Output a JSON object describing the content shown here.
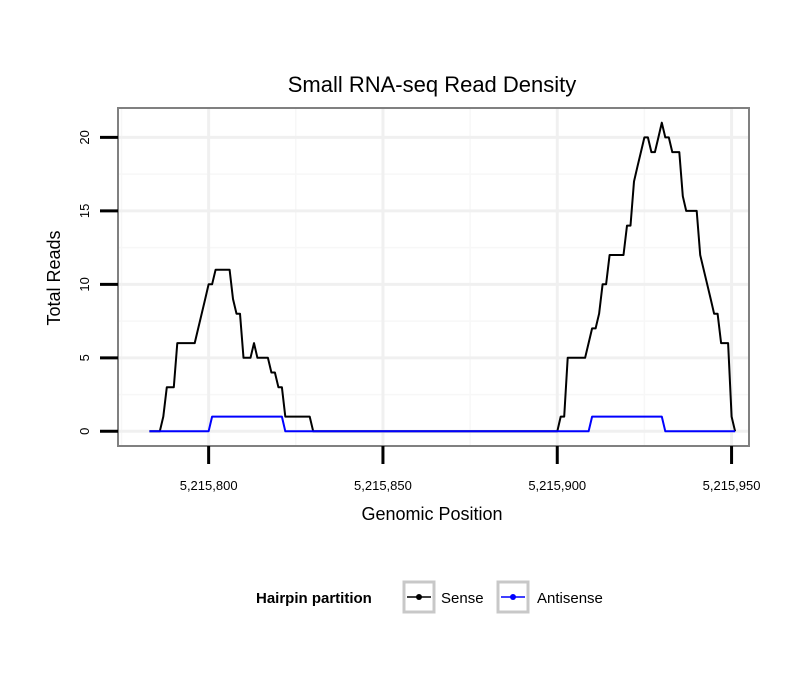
{
  "chart_data": {
    "type": "line",
    "title": "Small RNA-seq Read Density",
    "xlabel": "Genomic Position",
    "ylabel": "Total Reads",
    "xlim": [
      5215774,
      5215955
    ],
    "ylim": [
      -1,
      22
    ],
    "x_ticks": [
      5215800,
      5215850,
      5215900,
      5215950
    ],
    "x_tick_labels": [
      "5,215,800",
      "5,215,850",
      "5,215,900",
      "5,215,950"
    ],
    "y_ticks": [
      0,
      5,
      10,
      15,
      20
    ],
    "y_tick_labels": [
      "0",
      "5",
      "10",
      "15",
      "20"
    ],
    "grid": true,
    "legend": {
      "title": "Hairpin partition",
      "position": "bottom"
    },
    "series": [
      {
        "name": "Sense",
        "color": "#000000",
        "x": [
          5215783,
          5215786,
          5215787,
          5215788,
          5215789,
          5215790,
          5215791,
          5215792,
          5215793,
          5215794,
          5215795,
          5215796,
          5215797,
          5215798,
          5215799,
          5215800,
          5215801,
          5215802,
          5215803,
          5215804,
          5215805,
          5215806,
          5215807,
          5215808,
          5215809,
          5215810,
          5215811,
          5215812,
          5215813,
          5215814,
          5215815,
          5215816,
          5215817,
          5215818,
          5215819,
          5215820,
          5215821,
          5215822,
          5215823,
          5215824,
          5215825,
          5215826,
          5215827,
          5215828,
          5215829,
          5215830,
          5215840,
          5215850,
          5215860,
          5215870,
          5215880,
          5215890,
          5215900,
          5215901,
          5215902,
          5215903,
          5215904,
          5215905,
          5215906,
          5215907,
          5215908,
          5215909,
          5215910,
          5215911,
          5215912,
          5215913,
          5215914,
          5215915,
          5215916,
          5215917,
          5215918,
          5215919,
          5215920,
          5215921,
          5215922,
          5215923,
          5215924,
          5215925,
          5215926,
          5215927,
          5215928,
          5215929,
          5215930,
          5215931,
          5215932,
          5215933,
          5215934,
          5215935,
          5215936,
          5215937,
          5215938,
          5215939,
          5215940,
          5215941,
          5215942,
          5215943,
          5215944,
          5215945,
          5215946,
          5215947,
          5215948,
          5215949,
          5215950,
          5215951
        ],
        "y": [
          0,
          0,
          1,
          3,
          3,
          3,
          6,
          6,
          6,
          6,
          6,
          6,
          7,
          8,
          9,
          10,
          10,
          11,
          11,
          11,
          11,
          11,
          9,
          8,
          8,
          5,
          5,
          5,
          6,
          5,
          5,
          5,
          5,
          4,
          4,
          3,
          3,
          1,
          1,
          1,
          1,
          1,
          1,
          1,
          1,
          0,
          0,
          0,
          0,
          0,
          0,
          0,
          0,
          1,
          1,
          5,
          5,
          5,
          5,
          5,
          5,
          6,
          7,
          7,
          8,
          10,
          10,
          12,
          12,
          12,
          12,
          12,
          14,
          14,
          17,
          18,
          19,
          20,
          20,
          19,
          19,
          20,
          21,
          20,
          20,
          19,
          19,
          19,
          16,
          15,
          15,
          15,
          15,
          12,
          11,
          10,
          9,
          8,
          8,
          6,
          6,
          6,
          1,
          0
        ]
      },
      {
        "name": "Antisense",
        "color": "#0000ff",
        "x": [
          5215783,
          5215800,
          5215801,
          5215802,
          5215821,
          5215822,
          5215899,
          5215900,
          5215909,
          5215910,
          5215930,
          5215931,
          5215951
        ],
        "y": [
          0,
          0,
          1,
          1,
          1,
          0,
          0,
          0,
          0,
          1,
          1,
          0,
          0
        ]
      }
    ]
  }
}
